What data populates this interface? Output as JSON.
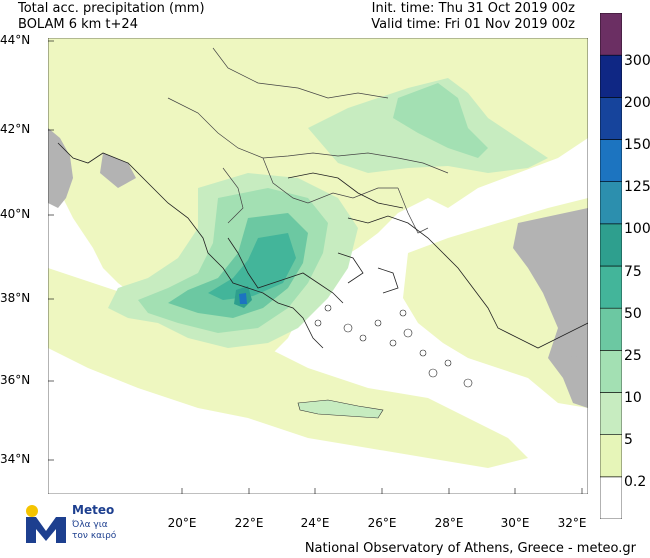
{
  "header": {
    "title_line1": "Total acc. precipitation (mm)",
    "title_line2": "BOLAM 6 km t+24",
    "init_time": "Init. time: Thu 31 Oct 2019 00z",
    "valid_time": "Valid time: Fri 01 Nov 2019 00z"
  },
  "map": {
    "lat_labels": [
      "44°N",
      "42°N",
      "40°N",
      "38°N",
      "36°N",
      "34°N"
    ],
    "lon_labels": [
      "20°E",
      "22°E",
      "24°E",
      "26°E",
      "28°E",
      "30°E",
      "32°E"
    ],
    "colors": {
      "sea": "#ffffff",
      "land_outside_domain": "#b3b3b3",
      "lowest_precip": "#eef7c0"
    }
  },
  "legend": {
    "levels": [
      "0.2",
      "5",
      "10",
      "25",
      "50",
      "75",
      "100",
      "125",
      "150",
      "200",
      "300"
    ],
    "colors": [
      "#ffffff",
      "#e6f5b8",
      "#c7ecc0",
      "#a3e0b3",
      "#6cc8a2",
      "#43b59a",
      "#2e9f8e",
      "#2c8fae",
      "#1c74c0",
      "#16449c",
      "#0f2784",
      "#6b2f63"
    ]
  },
  "logo": {
    "brand": "Meteo",
    "subtitle_line1": "Όλα για",
    "subtitle_line2": "τον καιρό"
  },
  "footer": {
    "credit": "National Observatory of Athens, Greece - meteo.gr"
  }
}
